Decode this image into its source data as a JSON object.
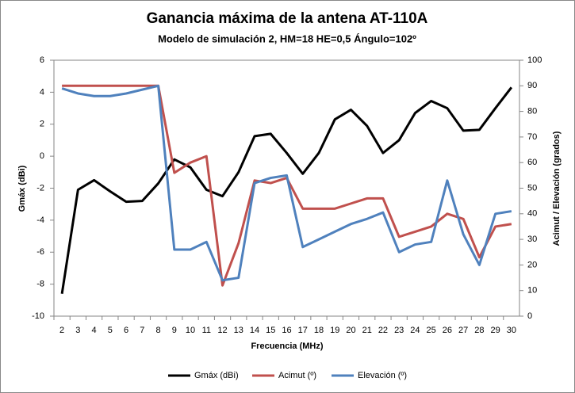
{
  "chart_data": {
    "type": "line",
    "title": "Ganancia máxima de la antena AT-110A",
    "subtitle": "Modelo de simulación 2, HM=18 HE=0,5 Ángulo=102º",
    "x_label": "Frecuencia (MHz)",
    "y_label": "Gmáx (dBi)",
    "y2_label": "Acimut / Elevación  (grados)",
    "categories": [
      2,
      3,
      4,
      5,
      6,
      7,
      8,
      9,
      10,
      11,
      12,
      13,
      14,
      15,
      16,
      17,
      18,
      19,
      20,
      21,
      22,
      23,
      24,
      25,
      26,
      27,
      28,
      29,
      30
    ],
    "ylim": [
      -10,
      6
    ],
    "yticks": [
      -10,
      -8,
      -6,
      -4,
      -2,
      0,
      2,
      4,
      6
    ],
    "y2lim": [
      0,
      100
    ],
    "y2ticks": [
      0,
      10,
      20,
      30,
      40,
      50,
      60,
      70,
      80,
      90,
      100
    ],
    "legend": "bottom",
    "series": [
      {
        "name": "Gmáx (dBi)",
        "color": "#000000",
        "values": [
          -8.6,
          -2.1,
          -1.5,
          -2.2,
          -2.85,
          -2.8,
          -1.7,
          -0.2,
          -0.7,
          -2.1,
          -2.5,
          -1.0,
          1.25,
          1.4,
          0.2,
          -1.1,
          0.2,
          2.3,
          2.9,
          1.9,
          0.2,
          1.0,
          2.7,
          3.45,
          3.0,
          1.6,
          1.65,
          3.0,
          4.3
        ]
      },
      {
        "name": "Acimut (º)",
        "color": "#c0504d",
        "axis": "y2",
        "values": [
          90,
          90,
          90,
          90,
          90,
          90,
          90,
          56,
          60,
          62.5,
          12,
          28.5,
          53,
          52,
          54,
          42,
          42,
          42,
          44,
          46,
          46,
          31,
          33,
          35,
          40,
          38,
          23,
          35,
          36
        ]
      },
      {
        "name": "Elevación (º)",
        "color": "#4f81bd",
        "axis": "y2",
        "values": [
          89,
          87,
          86,
          86,
          87,
          88.5,
          90,
          26,
          26,
          29,
          14,
          15,
          52,
          54,
          55,
          27,
          30,
          33,
          36,
          38,
          40.5,
          25,
          28,
          29,
          53,
          32,
          20,
          40,
          41
        ]
      }
    ]
  }
}
